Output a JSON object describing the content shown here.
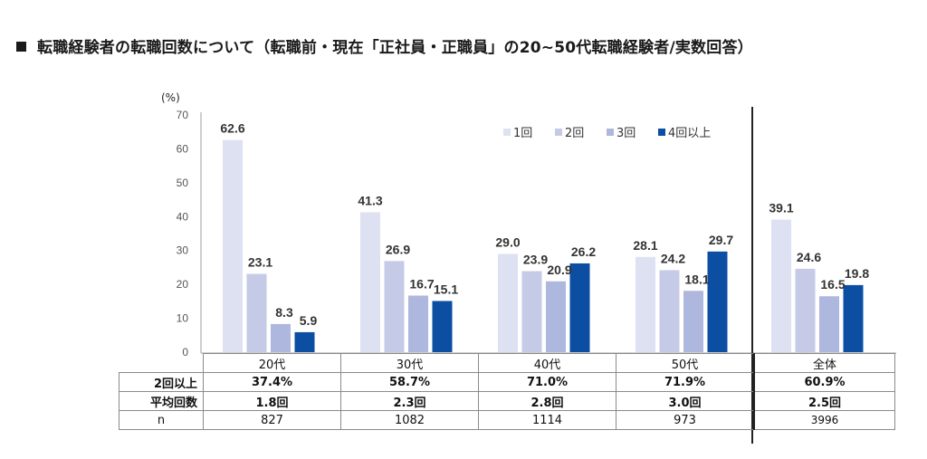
{
  "title": "転職経験者の転職回数について（転職前・現在「正社員・正職員」の20~50代転職経験者/実数回答）",
  "title_icon": "black-square-icon",
  "chart_data": {
    "type": "bar",
    "title": "転職経験者の転職回数について（転職前・現在「正社員・正職員」の20~50代転職経験者/実数回答）",
    "ylabel": "（%）",
    "xlabel": "",
    "ylim": [
      0,
      70
    ],
    "yticks": [
      0,
      10,
      20,
      30,
      40,
      50,
      60,
      70
    ],
    "grid": false,
    "legend_position": "top-right",
    "categories": [
      "20代",
      "30代",
      "40代",
      "50代",
      "全体"
    ],
    "series": [
      {
        "name": "1回",
        "color": "#dde1f2",
        "values": [
          62.6,
          41.3,
          29.0,
          28.1,
          39.1
        ]
      },
      {
        "name": "2回",
        "color": "#c5cbe6",
        "values": [
          23.1,
          26.9,
          23.9,
          24.2,
          24.6
        ]
      },
      {
        "name": "3回",
        "color": "#aeb7dd",
        "values": [
          8.3,
          16.7,
          20.9,
          18.1,
          16.5
        ]
      },
      {
        "name": "4回以上",
        "color": "#0b4ea2",
        "values": [
          5.9,
          15.1,
          26.2,
          29.7,
          19.8
        ]
      }
    ],
    "data_labels": [
      [
        "62.6",
        "41.3",
        "29.0",
        "28.1",
        "39.1"
      ],
      [
        "23.1",
        "26.9",
        "23.9",
        "24.2",
        "24.6"
      ],
      [
        "8.3",
        "16.7",
        "20.9",
        "18.1",
        "16.5"
      ],
      [
        "5.9",
        "15.1",
        "26.2",
        "29.7",
        "19.8"
      ]
    ],
    "table": {
      "header": [
        "20代",
        "30代",
        "40代",
        "50代",
        "全体"
      ],
      "rows": [
        {
          "label": "2回以上",
          "values": [
            "37.4%",
            "58.7%",
            "71.0%",
            "71.9%",
            "60.9%"
          ],
          "bold": true
        },
        {
          "label": "平均回数",
          "values": [
            "1.8回",
            "2.3回",
            "2.8回",
            "3.0回",
            "2.5回"
          ],
          "bold": true
        },
        {
          "label": "n",
          "values": [
            "827",
            "1082",
            "1114",
            "973",
            "3996"
          ],
          "bold": false
        }
      ]
    }
  }
}
